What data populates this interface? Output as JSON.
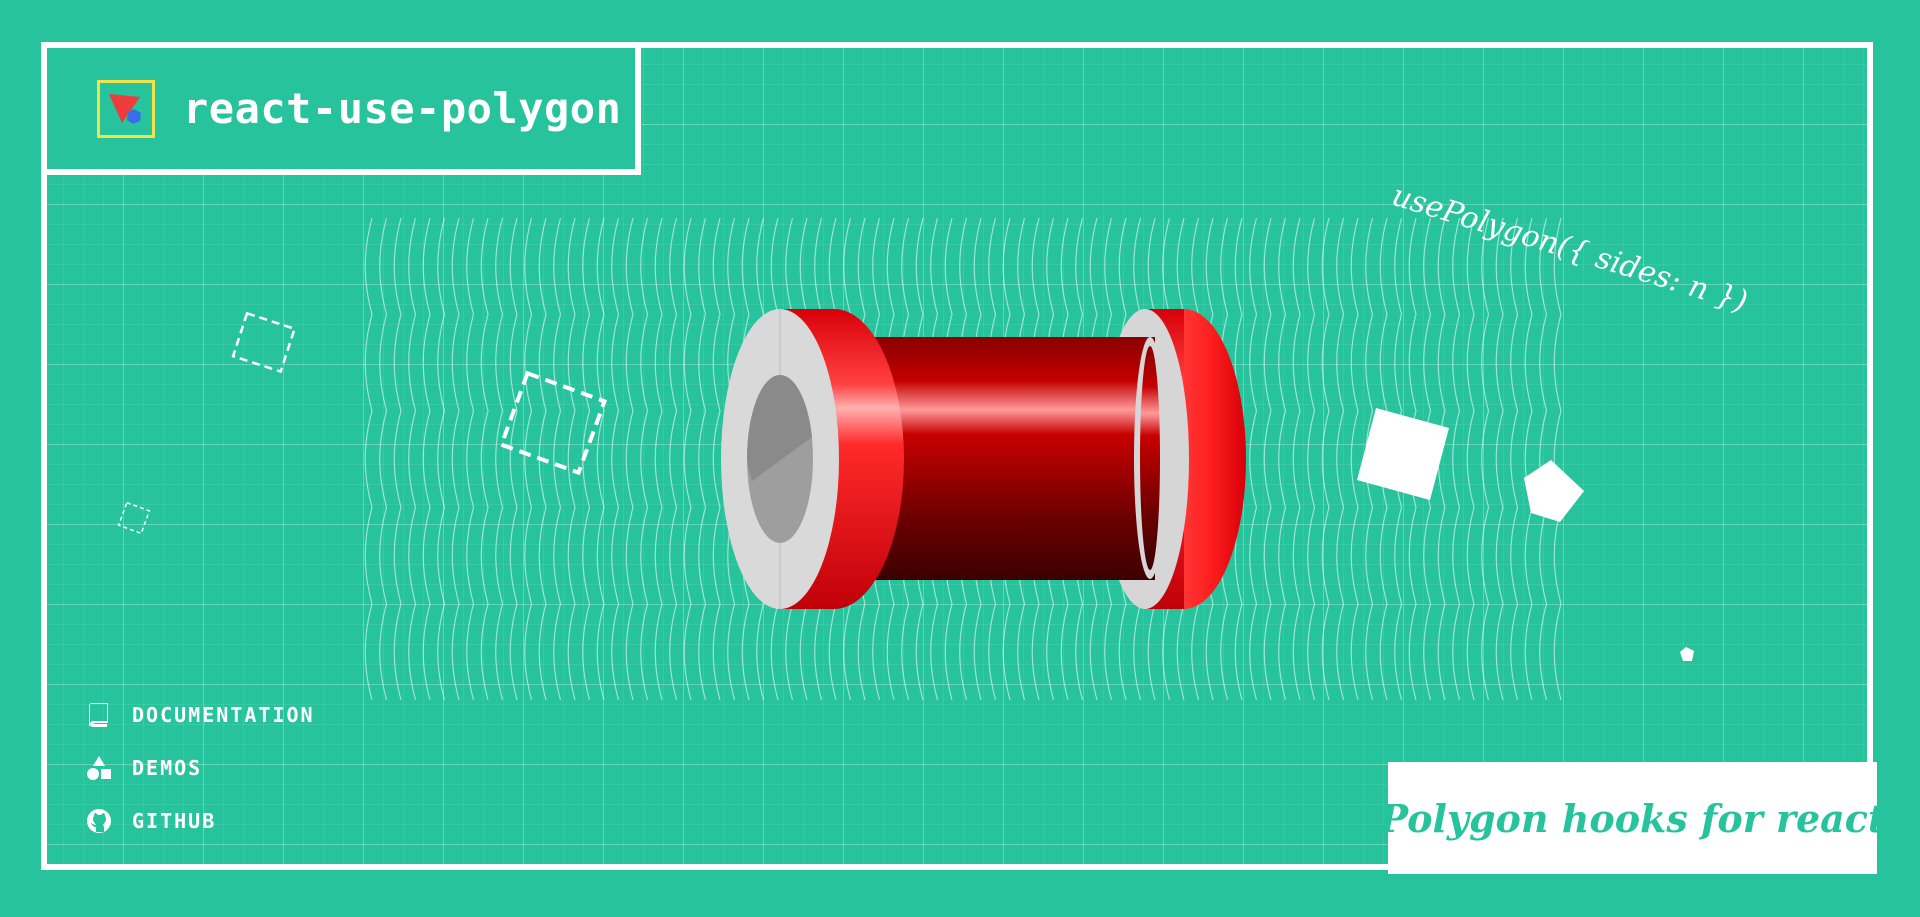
{
  "header": {
    "title": "react-use-polygon",
    "logo_icon": "polygon-logo-icon"
  },
  "hero": {
    "code_tagline": "usePolygon({ sides: n })"
  },
  "nav": {
    "items": [
      {
        "label": "DOCUMENTATION",
        "icon": "book-icon"
      },
      {
        "label": "DEMOS",
        "icon": "shapes-icon"
      },
      {
        "label": "GITHUB",
        "icon": "github-icon"
      }
    ]
  },
  "promo": {
    "text": "Polygon hooks for react"
  },
  "colors": {
    "background": "#26c39c",
    "frame": "#ffffff",
    "accent_red": "#e8101a",
    "logo_border": "#f0e24a",
    "logo_red": "#ee3b3b",
    "logo_blue": "#3a6ee8"
  }
}
